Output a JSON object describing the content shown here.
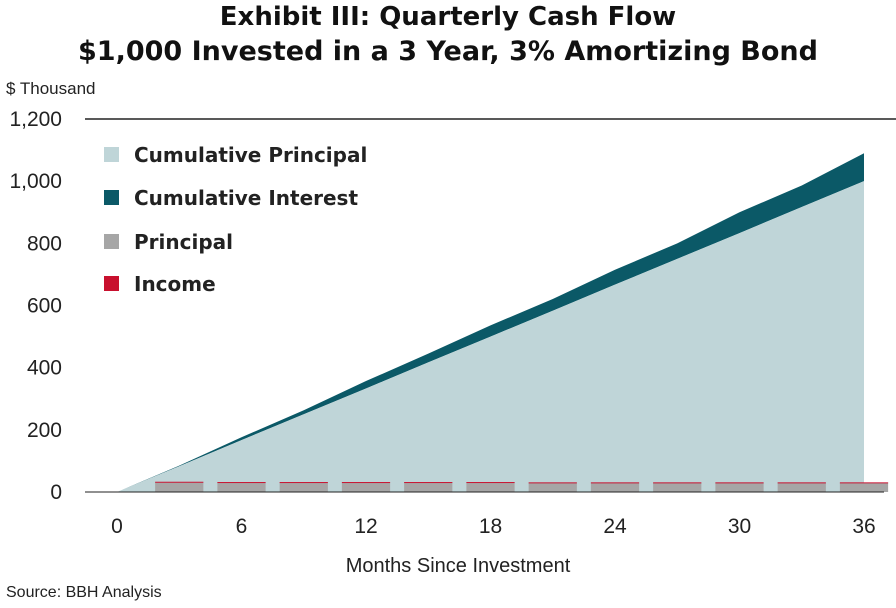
{
  "chart_data": {
    "type": "area",
    "title": "Exhibit III: Quarterly Cash Flow",
    "subtitle": "$1,000 Invested in a 3 Year, 3% Amortizing Bond",
    "ylabel": "$ Thousand",
    "xlabel": "Months Since Investment",
    "source": "Source: BBH Analysis",
    "xlim": [
      0,
      36
    ],
    "ylim": [
      0,
      1200
    ],
    "x_ticks": [
      "0",
      "6",
      "12",
      "18",
      "24",
      "30",
      "36"
    ],
    "y_ticks": [
      "0",
      "200",
      "400",
      "600",
      "800",
      "1,000",
      "1,200"
    ],
    "legend_position": "top-left",
    "x": [
      0,
      3,
      6,
      9,
      12,
      15,
      18,
      21,
      24,
      27,
      30,
      33,
      36
    ],
    "series": [
      {
        "name": "Cumulative Principal",
        "kind": "area",
        "color": "#bfd5d8",
        "values": [
          0,
          83,
          167,
          250,
          333,
          417,
          500,
          583,
          667,
          750,
          833,
          917,
          1000
        ]
      },
      {
        "name": "Cumulative Interest",
        "kind": "area-stacked",
        "color": "#0b5967",
        "values": [
          0,
          2,
          9,
          13,
          24,
          28,
          36,
          38,
          48,
          50,
          67,
          69,
          90
        ]
      },
      {
        "name": "Principal",
        "kind": "bar",
        "color": "#a6a6a6",
        "values": [
          0,
          30,
          30,
          30,
          30,
          30,
          30,
          30,
          30,
          30,
          30,
          30,
          30
        ]
      },
      {
        "name": "Income",
        "kind": "bar",
        "color": "#c8102e",
        "values": [
          0,
          3,
          2,
          2,
          2,
          2,
          2,
          1,
          1,
          1,
          1,
          1,
          1
        ]
      }
    ]
  }
}
